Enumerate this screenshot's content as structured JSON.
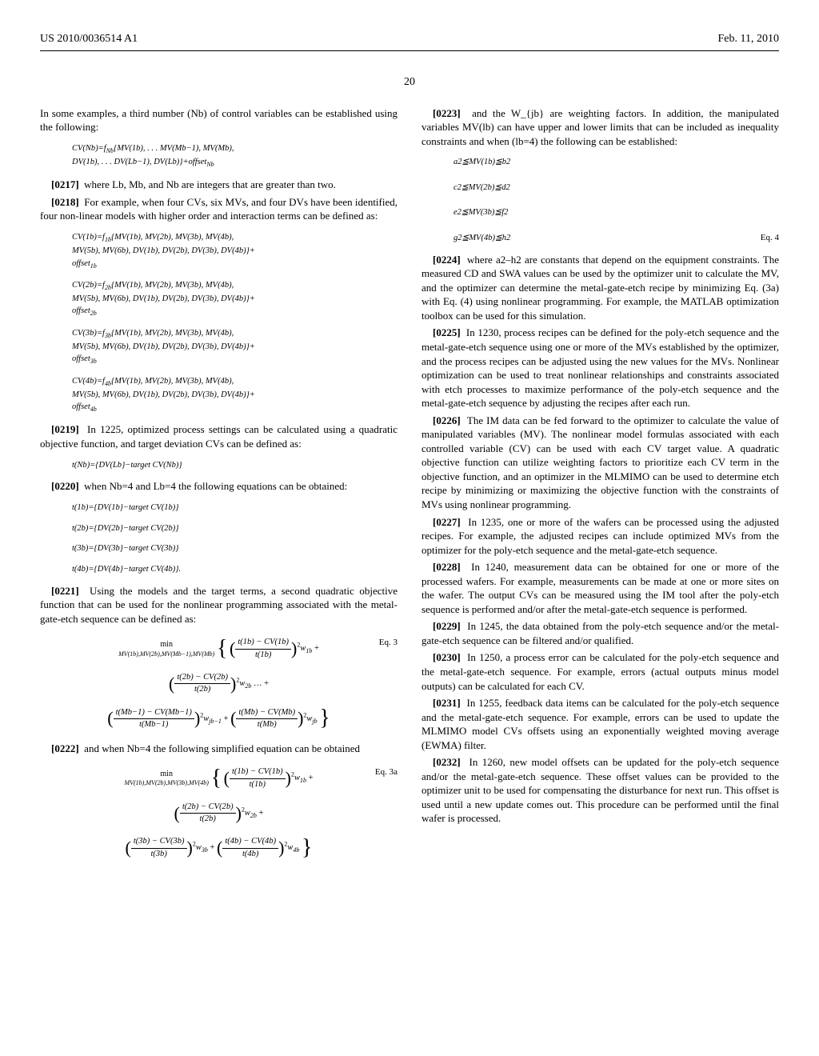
{
  "header": {
    "pub_number": "US 2010/0036514 A1",
    "pub_date": "Feb. 11, 2010",
    "page_number": "20"
  },
  "left": {
    "intro": "In some examples, a third number (Nb) of control variables can be established using the following:",
    "f_general": "CV(Nb)=f_{Nb}{MV(1b), . . . MV(Mb−1), MV(Mb), DV(1b), . . . DV(Lb−1), DV(Lb)}+offset_{Nb}",
    "p0217": "where Lb, Mb, and Nb are integers that are greater than two.",
    "p0218": "For example, when four CVs, six MVs, and four DVs have been identified, four non-linear models with higher order and interaction terms can be defined as:",
    "cv1b": "CV(1b)=f_{1b}{MV(1b), MV(2b), MV(3b), MV(4b), MV(5b), MV(6b), DV(1b), DV(2b), DV(3b), DV(4b)}+offset_{1b}",
    "cv2b": "CV(2b)=f_{2b}{MV(1b), MV(2b), MV(3b), MV(4b), MV(5b), MV(6b), DV(1b), DV(2b), DV(3b), DV(4b)}+offset_{2b}",
    "cv3b": "CV(3b)=f_{3b}{MV(1b), MV(2b), MV(3b), MV(4b), MV(5b), MV(6b), DV(1b), DV(2b), DV(3b), DV(4b)}+offset_{3b}",
    "cv4b": "CV(4b)=f_{4b}{MV(1b), MV(2b), MV(3b), MV(4b), MV(5b), MV(6b), DV(1b), DV(2b), DV(3b), DV(4b)}+offset_{4b}",
    "p0219": "In 1225, optimized process settings can be calculated using a quadratic objective function, and target deviation CVs can be defined as:",
    "tNb": "t(Nb)={DV(Lb)−target CV(Nb)}",
    "p0220": "when Nb=4 and Lb=4 the following equations can be obtained:",
    "t1b": "t(1b)={DV(1b}−target CV(1b)}",
    "t2b": "t(2b)={DV(2b}−target CV(2b)}",
    "t3b": "t(3b)={DV(3b}−target CV(3b)}",
    "t4b": "t(4b)={DV(4b}−target CV(4b)}.",
    "p0221": "Using the models and the target terms, a second quadratic objective function that can be used for the nonlinear programming associated with the metal-gate-etch sequence can be defined as:",
    "eq3_label": "Eq. 3",
    "p0222": "and when Nb=4 the following simplified equation can be obtained",
    "eq3a_label": "Eq. 3a"
  },
  "right": {
    "p0223": "and the W_{jb} are weighting factors. In addition, the manipulated variables MV(lb) can have upper and lower limits that can be included as inequality constraints and when (lb=4) the following can be established:",
    "c1": "a2≦MV(1b)≦b2",
    "c2": "c2≦MV(2b)≦d2",
    "c3": "e2≦MV(3b)≦f2",
    "c4": "g2≦MV(4b)≦h2",
    "eq4_label": "Eq. 4",
    "p0224": "where a2–h2 are constants that depend on the equipment constraints. The measured CD and SWA values can be used by the optimizer unit to calculate the MV, and the optimizer can determine the metal-gate-etch recipe by minimizing Eq. (3a) with Eq. (4) using nonlinear programming. For example, the MATLAB optimization toolbox can be used for this simulation.",
    "p0225": "In 1230, process recipes can be defined for the poly-etch sequence and the metal-gate-etch sequence using one or more of the MVs established by the optimizer, and the process recipes can be adjusted using the new values for the MVs. Nonlinear optimization can be used to treat nonlinear relationships and constraints associated with etch processes to maximize performance of the poly-etch sequence and the metal-gate-etch sequence by adjusting the recipes after each run.",
    "p0226": "The IM data can be fed forward to the optimizer to calculate the value of manipulated variables (MV). The nonlinear model formulas associated with each controlled variable (CV) can be used with each CV target value. A quadratic objective function can utilize weighting factors to prioritize each CV term in the objective function, and an optimizer in the MLMIMO can be used to determine etch recipe by minimizing or maximizing the objective function with the constraints of MVs using nonlinear programming.",
    "p0227": "In 1235, one or more of the wafers can be processed using the adjusted recipes. For example, the adjusted recipes can include optimized MVs from the optimizer for the poly-etch sequence and the metal-gate-etch sequence.",
    "p0228": "In 1240, measurement data can be obtained for one or more of the processed wafers. For example, measurements can be made at one or more sites on the wafer. The output CVs can be measured using the IM tool after the poly-etch sequence is performed and/or after the metal-gate-etch sequence is performed.",
    "p0229": "In 1245, the data obtained from the poly-etch sequence and/or the metal-gate-etch sequence can be filtered and/or qualified.",
    "p0230": "In 1250, a process error can be calculated for the poly-etch sequence and the metal-gate-etch sequence. For example, errors (actual outputs minus model outputs) can be calculated for each CV.",
    "p0231": "In 1255, feedback data items can be calculated for the poly-etch sequence and the metal-gate-etch sequence. For example, errors can be used to update the MLMIMO model CVs offsets using an exponentially weighted moving average (EWMA) filter.",
    "p0232": "In 1260, new model offsets can be updated for the poly-etch sequence and/or the metal-gate-etch sequence. These offset values can be provided to the optimizer unit to be used for compensating the disturbance for next run. This offset is used until a new update comes out. This procedure can be performed until the final wafer is processed."
  }
}
